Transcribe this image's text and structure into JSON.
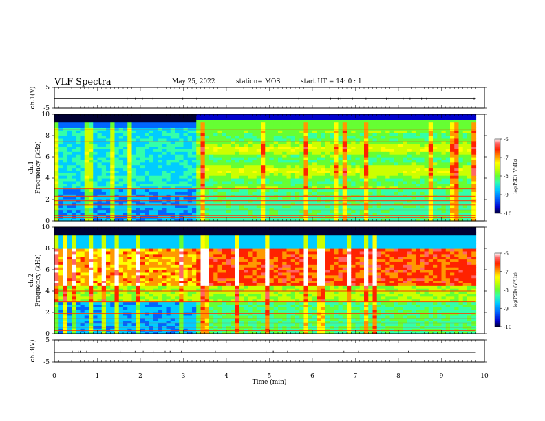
{
  "header": {
    "title": "VLF Spectra",
    "date": "May 25, 2022",
    "station": "station= MOS",
    "start_time": "start  UT =   14: 0  : 1"
  },
  "chart_data": [
    {
      "type": "line",
      "name": "ch1-voltage",
      "ylabel": "ch.1(V)",
      "ylim": [
        -5,
        5
      ],
      "yticks": [
        "5",
        "-5"
      ],
      "xlim": [
        0,
        10
      ],
      "series": [
        {
          "x": [
            0,
            9.8
          ],
          "y": [
            -0.4,
            -0.4
          ]
        }
      ]
    },
    {
      "type": "heatmap",
      "name": "ch1-spectrogram",
      "ylabel_top": "ch.1",
      "ylabel": "Frequency (kHz)",
      "xlim": [
        0,
        9.8
      ],
      "ylim": [
        0,
        10
      ],
      "yticks": [
        "0",
        "2",
        "4",
        "6",
        "8",
        "10"
      ],
      "colorbar": {
        "label": "log(PSD) (V²/Hz)",
        "range": [
          -10,
          -6
        ],
        "ticks": [
          "-6",
          "-7",
          "-8",
          "-9",
          "-10"
        ]
      },
      "data_end_min": 9.8,
      "transition_min": 3.35,
      "bands_khz": [
        0.3,
        0.5,
        1.0,
        1.5,
        1.9,
        2.3,
        3.0,
        7.4,
        8.6
      ]
    },
    {
      "type": "heatmap",
      "name": "ch2-spectrogram",
      "ylabel_top": "ch.2",
      "ylabel": "Frequency (kHz)",
      "xlim": [
        0,
        9.8
      ],
      "ylim": [
        0,
        10
      ],
      "yticks": [
        "0",
        "2",
        "4",
        "6",
        "8",
        "10"
      ],
      "colorbar": {
        "label": "log(PSD) (V²/Hz)",
        "range": [
          -10,
          -6
        ],
        "ticks": [
          "-6",
          "-7",
          "-8",
          "-9",
          "-10"
        ]
      },
      "data_end_min": 9.8,
      "transition_min": 3.35,
      "bands_khz": [
        0.3,
        0.6,
        1.0,
        1.4,
        1.9,
        3.0,
        4.0
      ]
    },
    {
      "type": "line",
      "name": "ch3-voltage",
      "ylabel": "ch.3(V)",
      "ylim": [
        -5,
        5
      ],
      "yticks": [
        "5",
        "-5"
      ],
      "xlim": [
        0,
        10
      ],
      "series": [
        {
          "x": [
            0,
            9.8
          ],
          "y": [
            -0.6,
            -0.6
          ]
        }
      ]
    }
  ],
  "xaxis": {
    "label": "Time  (min)",
    "ticks": [
      "0",
      "1",
      "2",
      "3",
      "4",
      "5",
      "6",
      "7",
      "8",
      "9",
      "10"
    ]
  },
  "colors": {
    "colormap": [
      "#000033",
      "#0000cc",
      "#0066ff",
      "#00ccff",
      "#33ffaa",
      "#66ff33",
      "#ccff00",
      "#ffff00",
      "#ff9900",
      "#ff2200",
      "#ff6666",
      "#ffffff"
    ]
  }
}
